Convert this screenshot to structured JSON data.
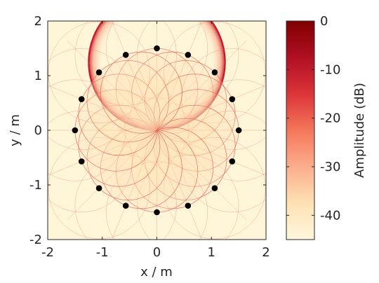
{
  "chart_data": {
    "type": "heatmap",
    "title": "",
    "xlabel": "x / m",
    "ylabel": "y / m",
    "xlim": [
      -2,
      2
    ],
    "ylim": [
      -2,
      2
    ],
    "x_ticks": [
      "-2",
      "-1",
      "0",
      "1",
      "2"
    ],
    "y_ticks": [
      "2",
      "1",
      "0",
      "-1",
      "-2"
    ],
    "colorbar": {
      "label": "Amplitude (dB)",
      "range": [
        -45,
        0
      ],
      "ticks": [
        "0",
        "-10",
        "-20",
        "-30",
        "-40"
      ],
      "colors": [
        "#fff7dd",
        "#fde1b3",
        "#fcae8d",
        "#f4775a",
        "#db3439",
        "#b10f23",
        "#7f0000"
      ]
    },
    "field": {
      "source_x": 0,
      "source_y": 0,
      "secondary_sources": [
        {
          "x": 0.0,
          "y": 1.5
        },
        {
          "x": 0.57,
          "y": 1.38
        },
        {
          "x": 1.06,
          "y": 1.06
        },
        {
          "x": 1.38,
          "y": 0.57
        },
        {
          "x": 1.5,
          "y": 0.0
        },
        {
          "x": 1.38,
          "y": -0.57
        },
        {
          "x": 1.06,
          "y": -1.06
        },
        {
          "x": 0.57,
          "y": -1.38
        },
        {
          "x": 0.0,
          "y": -1.5
        },
        {
          "x": -0.57,
          "y": -1.38
        },
        {
          "x": -1.06,
          "y": -1.06
        },
        {
          "x": -1.38,
          "y": -0.57
        },
        {
          "x": -1.5,
          "y": 0.0
        },
        {
          "x": -1.38,
          "y": 0.57
        },
        {
          "x": -1.06,
          "y": 1.06
        },
        {
          "x": -0.57,
          "y": 1.38
        }
      ],
      "highlight_circle": {
        "center_x": 0.0,
        "center_y": 1.25,
        "radius": 1.25
      }
    },
    "marker_color": "#000000",
    "grid": false,
    "legend": "colorbar-right"
  }
}
